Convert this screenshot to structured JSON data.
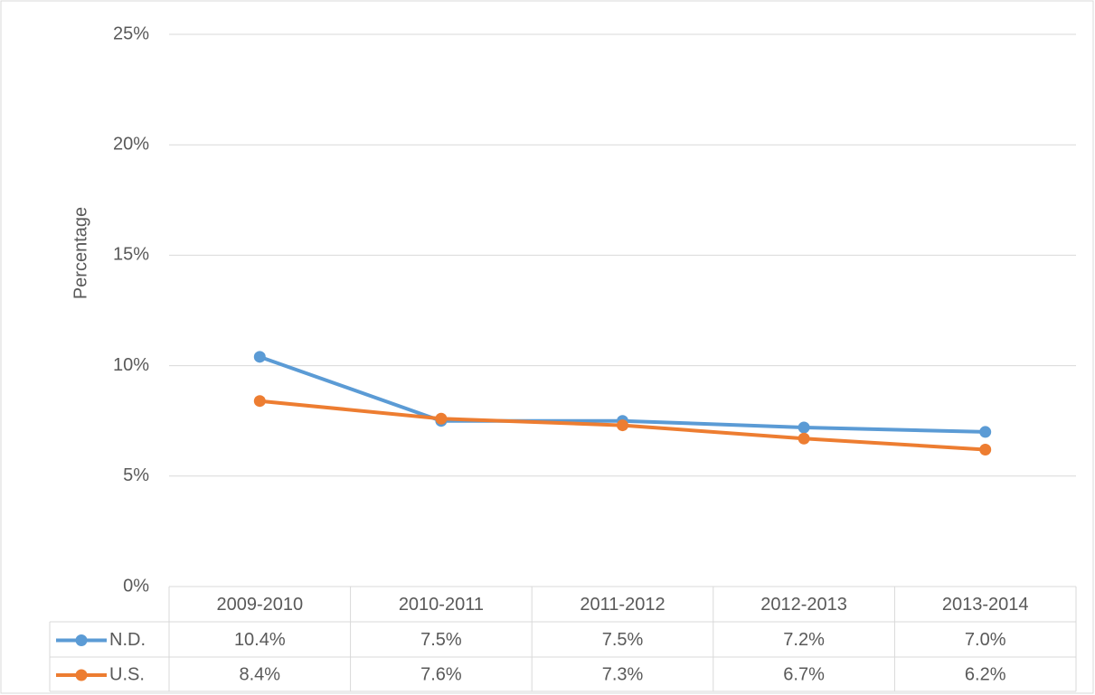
{
  "chart_data": {
    "type": "line",
    "y_label": "Percentage",
    "categories": [
      "2009-2010",
      "2010-2011",
      "2011-2012",
      "2012-2013",
      "2013-2014"
    ],
    "series": [
      {
        "name": "N.D.",
        "color": "#5b9bd5",
        "values": [
          10.4,
          7.5,
          7.5,
          7.2,
          7.0
        ],
        "value_labels": [
          "10.4%",
          "7.5%",
          "7.5%",
          "7.2%",
          "7.0%"
        ]
      },
      {
        "name": "U.S.",
        "color": "#ed7d31",
        "values": [
          8.4,
          7.6,
          7.3,
          6.7,
          6.2
        ],
        "value_labels": [
          "8.4%",
          "7.6%",
          "7.3%",
          "6.7%",
          "6.2%"
        ]
      }
    ],
    "ylim": [
      0,
      25
    ],
    "yticks": [
      {
        "value": 0,
        "label": "0%"
      },
      {
        "value": 5,
        "label": "5%"
      },
      {
        "value": 10,
        "label": "10%"
      },
      {
        "value": 15,
        "label": "15%"
      },
      {
        "value": 20,
        "label": "20%"
      },
      {
        "value": 25,
        "label": "25%"
      }
    ],
    "grid": true
  }
}
